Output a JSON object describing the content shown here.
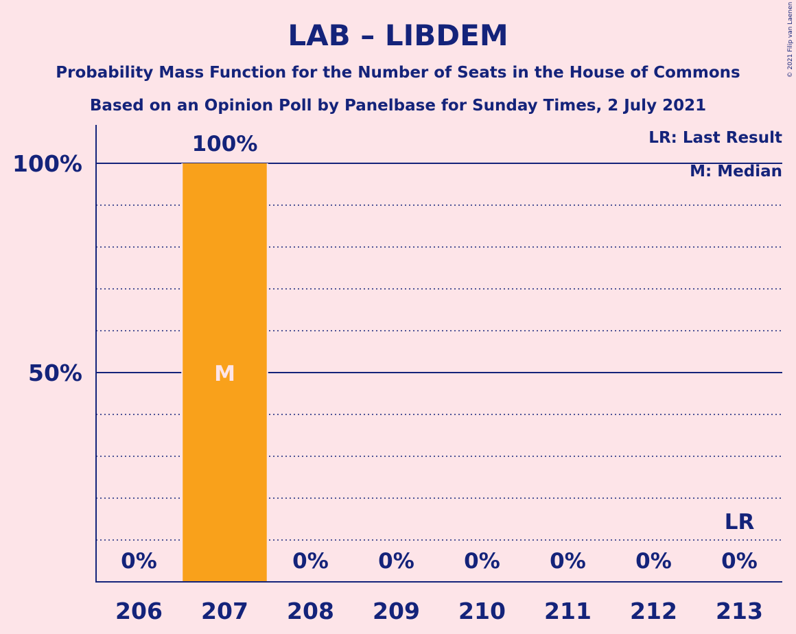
{
  "chart_data": {
    "type": "bar",
    "title": "LAB – LIBDEM",
    "subtitle1": "Probability Mass Function for the Number of Seats in the House of Commons",
    "subtitle2": "Based on an Opinion Poll by Panelbase for Sunday Times, 2 July 2021",
    "copyright": "© 2021 Filip van Laenen",
    "legend": {
      "lr": "LR: Last Result",
      "m": "M: Median",
      "placement": "top-right"
    },
    "categories": [
      "206",
      "207",
      "208",
      "209",
      "210",
      "211",
      "212",
      "213"
    ],
    "values": [
      0,
      100,
      0,
      0,
      0,
      0,
      0,
      0
    ],
    "value_labels": [
      "0%",
      "100%",
      "0%",
      "0%",
      "0%",
      "0%",
      "0%",
      "0%"
    ],
    "ylim": [
      0,
      100
    ],
    "ytick_labels": [
      {
        "value": 50,
        "label": "50%"
      },
      {
        "value": 100,
        "label": "100%"
      }
    ],
    "grid_dotted_values": [
      10,
      20,
      30,
      40,
      60,
      70,
      80,
      90
    ],
    "grid_solid_values": [
      50,
      100
    ],
    "median_category": "207",
    "median_marker": "M",
    "last_result_category": "213",
    "last_result_marker": "LR",
    "colors": {
      "background": "#fde4e8",
      "text": "#14237a",
      "bar": "#f9a11b",
      "median_text": "#fde4e8"
    }
  }
}
